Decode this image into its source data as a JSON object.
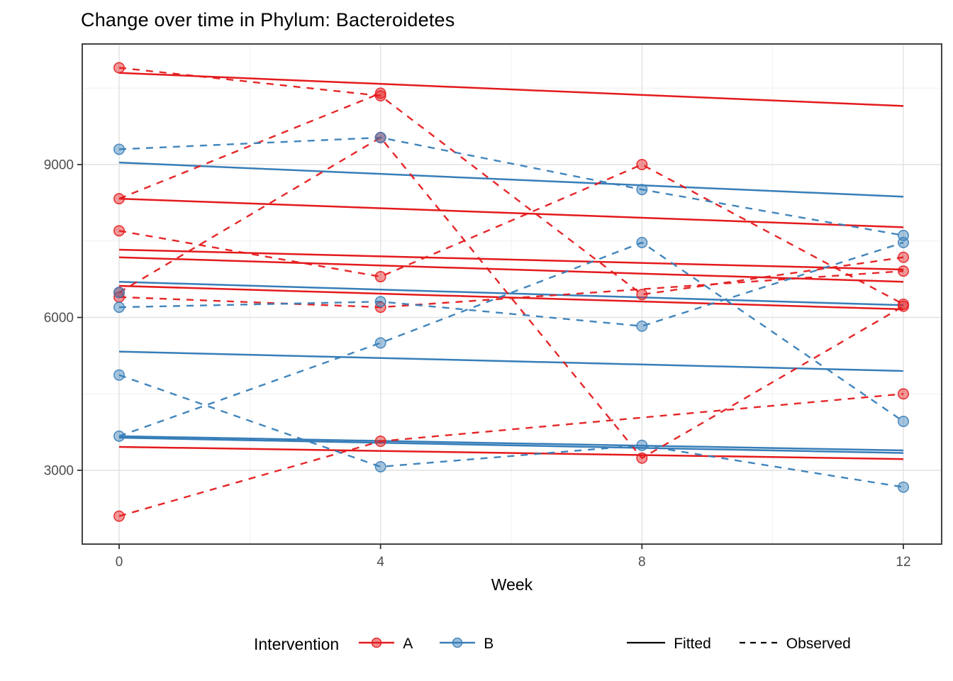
{
  "title": "Change over time in Phylum: Bacteroidetes",
  "colors": {
    "A": "#E41A1C",
    "B": "#377EB8",
    "grid_major": "#E2E2E2",
    "grid_minor": "#EFEFEF",
    "panel_border": "#434343",
    "tick_color": "#333333",
    "tick_label": "#4D4D4D",
    "legend_line": "#000000"
  },
  "legend": {
    "title": "Intervention",
    "groups": [
      {
        "label": "A"
      },
      {
        "label": "B"
      }
    ],
    "linetypes": [
      {
        "label": "Fitted"
      },
      {
        "label": "Observed"
      }
    ]
  },
  "chart_data": {
    "type": "line",
    "title": "Change over time in Phylum: Bacteroidetes",
    "xlabel": "Week",
    "ylabel": "",
    "x_ticks": [
      0,
      4,
      8,
      12
    ],
    "y_ticks": [
      3000,
      6000,
      9000
    ],
    "x_minor": [
      2,
      6,
      10
    ],
    "y_minor": [
      4500,
      7500,
      10500
    ],
    "xlim": [
      -0.56,
      12.59
    ],
    "ylim": [
      1550,
      11370
    ],
    "grid": true,
    "legend_position": "bottom",
    "series": [
      {
        "group": "A",
        "kind": "Fitted",
        "points": [
          [
            0,
            10800
          ],
          [
            12,
            10150
          ]
        ]
      },
      {
        "group": "A",
        "kind": "Fitted",
        "points": [
          [
            0,
            8330
          ],
          [
            12,
            7770
          ]
        ]
      },
      {
        "group": "A",
        "kind": "Fitted",
        "points": [
          [
            0,
            7330
          ],
          [
            12,
            6940
          ]
        ]
      },
      {
        "group": "A",
        "kind": "Fitted",
        "points": [
          [
            0,
            7180
          ],
          [
            12,
            6700
          ]
        ]
      },
      {
        "group": "A",
        "kind": "Fitted",
        "points": [
          [
            0,
            6620
          ],
          [
            12,
            6160
          ]
        ]
      },
      {
        "group": "A",
        "kind": "Fitted",
        "points": [
          [
            0,
            3460
          ],
          [
            12,
            3220
          ]
        ]
      },
      {
        "group": "B",
        "kind": "Fitted",
        "points": [
          [
            0,
            9040
          ],
          [
            12,
            8370
          ]
        ]
      },
      {
        "group": "B",
        "kind": "Fitted",
        "points": [
          [
            0,
            6700
          ],
          [
            12,
            6240
          ]
        ]
      },
      {
        "group": "B",
        "kind": "Fitted",
        "points": [
          [
            0,
            5330
          ],
          [
            12,
            4950
          ]
        ]
      },
      {
        "group": "B",
        "kind": "Fitted",
        "points": [
          [
            0,
            3670
          ],
          [
            12,
            3390
          ]
        ]
      },
      {
        "group": "B",
        "kind": "Fitted",
        "points": [
          [
            0,
            3640
          ],
          [
            12,
            3340
          ]
        ]
      },
      {
        "group": "A",
        "kind": "Observed",
        "points": [
          [
            0,
            10900
          ],
          [
            4,
            10350
          ],
          [
            8,
            6450
          ],
          [
            12,
            7180
          ]
        ]
      },
      {
        "group": "A",
        "kind": "Observed",
        "points": [
          [
            0,
            8330
          ],
          [
            4,
            10400
          ]
        ]
      },
      {
        "group": "A",
        "kind": "Observed",
        "points": [
          [
            0,
            7700
          ],
          [
            4,
            6800
          ],
          [
            8,
            9000
          ],
          [
            12,
            6260
          ]
        ]
      },
      {
        "group": "A",
        "kind": "Observed",
        "points": [
          [
            0,
            6490
          ],
          [
            4,
            9530
          ],
          [
            8,
            3240
          ],
          [
            12,
            6220
          ]
        ]
      },
      {
        "group": "A",
        "kind": "Observed",
        "points": [
          [
            0,
            6400
          ],
          [
            4,
            6200
          ],
          [
            12,
            6910
          ]
        ]
      },
      {
        "group": "A",
        "kind": "Observed",
        "points": [
          [
            0,
            2100
          ],
          [
            4,
            3570
          ],
          [
            12,
            4500
          ]
        ]
      },
      {
        "group": "B",
        "kind": "Observed",
        "points": [
          [
            0,
            9300
          ],
          [
            4,
            9530
          ],
          [
            8,
            8510
          ],
          [
            12,
            7610
          ]
        ]
      },
      {
        "group": "B",
        "kind": "Observed",
        "points": [
          [
            0,
            6200
          ],
          [
            4,
            6310
          ],
          [
            8,
            5830
          ],
          [
            12,
            7470
          ]
        ]
      },
      {
        "group": "B",
        "kind": "Observed",
        "points": [
          [
            0,
            4870
          ],
          [
            4,
            3070
          ],
          [
            8,
            3490
          ],
          [
            12,
            2670
          ]
        ]
      },
      {
        "group": "B",
        "kind": "Observed",
        "points": [
          [
            0,
            3670
          ],
          [
            4,
            5500
          ],
          [
            8,
            7470
          ],
          [
            12,
            3960
          ]
        ]
      },
      {
        "group": "B",
        "kind": "Observed",
        "points": [
          [
            0,
            6490
          ]
        ]
      }
    ]
  }
}
